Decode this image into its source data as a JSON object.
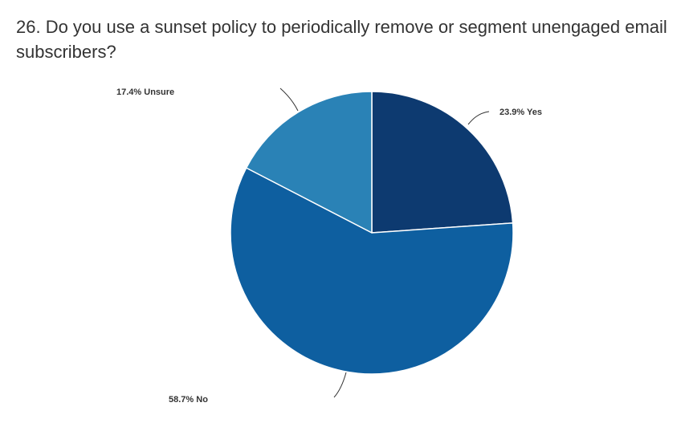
{
  "question": {
    "title": "26. Do you use a sunset policy to periodically remove or segment unengaged email subscribers?"
  },
  "chart_data": {
    "type": "pie",
    "title": "26. Do you use a sunset policy to periodically remove or segment unengaged email subscribers?",
    "slices": [
      {
        "label": "Yes",
        "value": 23.9,
        "display": "23.9% Yes",
        "color": "#0d3a70"
      },
      {
        "label": "No",
        "value": 58.7,
        "display": "58.7% No",
        "color": "#0e5fa0"
      },
      {
        "label": "Unsure",
        "value": 17.4,
        "display": "17.4% Unsure",
        "color": "#2a82b6"
      }
    ],
    "start_angle": "12 o'clock",
    "direction": "clockwise",
    "legend": "none",
    "labels": "outside with leader lines"
  }
}
